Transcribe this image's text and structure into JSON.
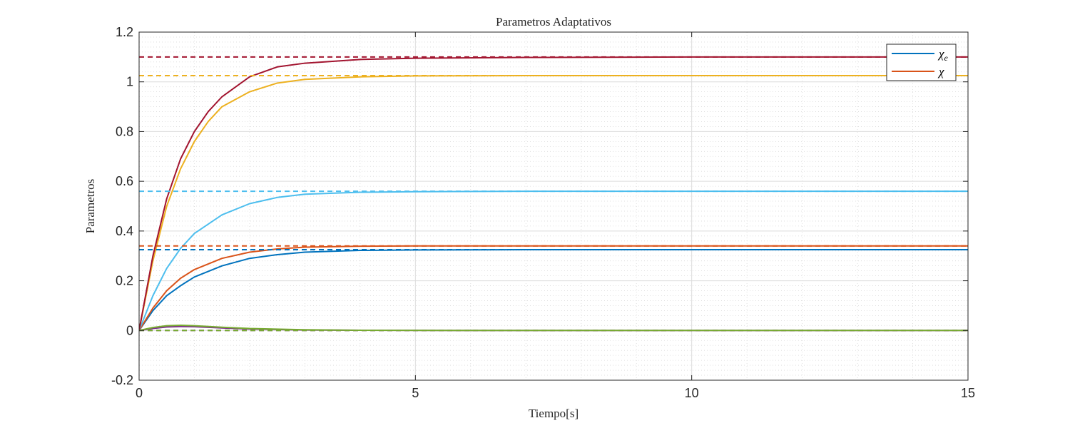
{
  "chart_data": {
    "type": "line",
    "title": "Parametros Adaptativos",
    "xlabel": "Tiempo[s]",
    "ylabel": "Parametros",
    "xlim": [
      0,
      15
    ],
    "ylim": [
      -0.2,
      1.2
    ],
    "xticks": [
      0,
      5,
      10,
      15
    ],
    "xtick_labels": [
      "0",
      "5",
      "10",
      "15"
    ],
    "yticks": [
      -0.2,
      0,
      0.2,
      0.4,
      0.6,
      0.8,
      1,
      1.2
    ],
    "ytick_labels": [
      "-0.2",
      "0",
      "0.2",
      "0.4",
      "0.6",
      "0.8",
      "1",
      "1.2"
    ],
    "grid": true,
    "minor_grid": true,
    "legend_position": "top-right",
    "legend": [
      {
        "label_main": "χ",
        "label_sub": "e",
        "color": "#0072bd"
      },
      {
        "label_main": "χ",
        "label_sub": "",
        "color": "#d95319"
      }
    ],
    "series": [
      {
        "color": "#0072bd",
        "style": "solid",
        "x": [
          0,
          0.25,
          0.5,
          0.75,
          1,
          1.5,
          2,
          2.5,
          3,
          4,
          5,
          7,
          10,
          15
        ],
        "y": [
          0,
          0.08,
          0.14,
          0.18,
          0.215,
          0.26,
          0.29,
          0.305,
          0.315,
          0.322,
          0.324,
          0.325,
          0.325,
          0.325
        ]
      },
      {
        "color": "#d95319",
        "style": "solid",
        "x": [
          0,
          0.25,
          0.5,
          0.75,
          1,
          1.5,
          2,
          2.5,
          3,
          4,
          5,
          7,
          10,
          15
        ],
        "y": [
          0,
          0.09,
          0.16,
          0.21,
          0.245,
          0.29,
          0.315,
          0.328,
          0.335,
          0.339,
          0.34,
          0.34,
          0.34,
          0.34
        ]
      },
      {
        "color": "#4dbeee",
        "style": "solid",
        "x": [
          0,
          0.25,
          0.5,
          0.75,
          1,
          1.5,
          2,
          2.5,
          3,
          4,
          5,
          7,
          10,
          15
        ],
        "y": [
          0,
          0.14,
          0.25,
          0.33,
          0.39,
          0.465,
          0.51,
          0.535,
          0.548,
          0.556,
          0.558,
          0.56,
          0.56,
          0.56
        ]
      },
      {
        "color": "#edb120",
        "style": "solid",
        "x": [
          0,
          0.25,
          0.5,
          0.75,
          1,
          1.25,
          1.5,
          2,
          2.5,
          3,
          4,
          5,
          7,
          10,
          15
        ],
        "y": [
          0,
          0.28,
          0.5,
          0.65,
          0.76,
          0.84,
          0.9,
          0.96,
          0.995,
          1.01,
          1.02,
          1.024,
          1.025,
          1.025,
          1.025
        ]
      },
      {
        "color": "#a2142f",
        "style": "solid",
        "x": [
          0,
          0.25,
          0.5,
          0.75,
          1,
          1.25,
          1.5,
          2,
          2.5,
          3,
          4,
          5,
          7,
          10,
          15
        ],
        "y": [
          0,
          0.3,
          0.53,
          0.69,
          0.8,
          0.88,
          0.94,
          1.02,
          1.06,
          1.075,
          1.09,
          1.095,
          1.098,
          1.1,
          1.1
        ]
      },
      {
        "color": "#7e2f8e",
        "style": "solid",
        "x": [
          0,
          0.25,
          0.5,
          0.75,
          1,
          1.5,
          2,
          3,
          4,
          6,
          15
        ],
        "y": [
          0,
          0.008,
          0.014,
          0.016,
          0.015,
          0.01,
          0.006,
          0.002,
          0.001,
          0,
          0
        ]
      },
      {
        "color": "#77ac30",
        "style": "solid",
        "x": [
          0,
          0.25,
          0.5,
          0.75,
          1,
          1.5,
          2,
          3,
          4,
          6,
          15
        ],
        "y": [
          0,
          0.012,
          0.019,
          0.021,
          0.019,
          0.013,
          0.008,
          0.003,
          0.001,
          0,
          0
        ]
      },
      {
        "color": "#0072bd",
        "style": "dashed",
        "x": [
          0,
          15
        ],
        "y": [
          0.325,
          0.325
        ]
      },
      {
        "color": "#d95319",
        "style": "dashed",
        "x": [
          0,
          15
        ],
        "y": [
          0.34,
          0.34
        ]
      },
      {
        "color": "#4dbeee",
        "style": "dashed",
        "x": [
          0,
          15
        ],
        "y": [
          0.56,
          0.56
        ]
      },
      {
        "color": "#edb120",
        "style": "dashed",
        "x": [
          0,
          15
        ],
        "y": [
          1.025,
          1.025
        ]
      },
      {
        "color": "#a2142f",
        "style": "dashed",
        "x": [
          0,
          15
        ],
        "y": [
          1.1,
          1.1
        ]
      },
      {
        "color": "#7e2f8e",
        "style": "dashed",
        "x": [
          0,
          15
        ],
        "y": [
          0,
          0
        ]
      },
      {
        "color": "#77ac30",
        "style": "dashed",
        "x": [
          0,
          15
        ],
        "y": [
          0,
          0
        ]
      }
    ]
  }
}
